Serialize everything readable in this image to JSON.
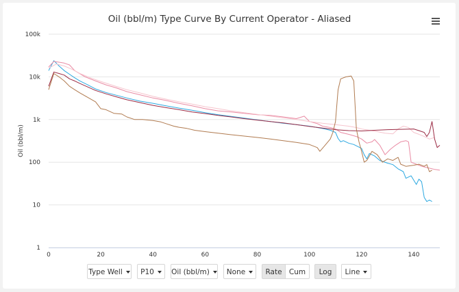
{
  "chart_title": "Oil (bbl/m) Type Curve By Current Operator - Aliased",
  "controls": {
    "type_well": "Type Well",
    "percentile": "P10",
    "metric": "Oil (bbl/m)",
    "normalize": "None",
    "rate": "Rate",
    "cum": "Cum",
    "log": "Log",
    "line": "Line"
  },
  "chart_data": {
    "type": "line",
    "title": "Oil (bbl/m) Type Curve By Current Operator - Aliased",
    "xlabel": "",
    "ylabel": "Oil (bbl/m)",
    "y_scale": "log",
    "ylim": [
      1,
      100000
    ],
    "xlim": [
      0,
      150
    ],
    "x_ticks": [
      0,
      20,
      40,
      60,
      80,
      100,
      120,
      140
    ],
    "y_ticks": [
      1,
      10,
      100,
      1000,
      10000,
      100000
    ],
    "y_tick_labels": [
      "1",
      "10",
      "100",
      "1k",
      "10k",
      "100k"
    ],
    "grid": true,
    "legend": "none",
    "series": [
      {
        "color": "#2aa7e0",
        "points": [
          [
            0,
            14000
          ],
          [
            2,
            24000
          ],
          [
            4,
            18000
          ],
          [
            6,
            14000
          ],
          [
            8,
            11500
          ],
          [
            10,
            9500
          ],
          [
            12,
            8000
          ],
          [
            15,
            6500
          ],
          [
            18,
            5200
          ],
          [
            22,
            4300
          ],
          [
            26,
            3700
          ],
          [
            30,
            3200
          ],
          [
            35,
            2700
          ],
          [
            40,
            2400
          ],
          [
            45,
            2100
          ],
          [
            50,
            1850
          ],
          [
            55,
            1650
          ],
          [
            60,
            1450
          ],
          [
            65,
            1300
          ],
          [
            70,
            1180
          ],
          [
            75,
            1080
          ],
          [
            80,
            980
          ],
          [
            85,
            900
          ],
          [
            90,
            820
          ],
          [
            95,
            760
          ],
          [
            100,
            700
          ],
          [
            103,
            650
          ],
          [
            106,
            600
          ],
          [
            108,
            560
          ],
          [
            110,
            500
          ],
          [
            111,
            360
          ],
          [
            112,
            300
          ],
          [
            113,
            320
          ],
          [
            115,
            280
          ],
          [
            117,
            260
          ],
          [
            120,
            210
          ],
          [
            121,
            150
          ],
          [
            122,
            120
          ],
          [
            123,
            160
          ],
          [
            125,
            140
          ],
          [
            127,
            110
          ],
          [
            130,
            95
          ],
          [
            132,
            88
          ],
          [
            134,
            70
          ],
          [
            136,
            60
          ],
          [
            137,
            42
          ],
          [
            139,
            48
          ],
          [
            140,
            38
          ],
          [
            141,
            30
          ],
          [
            142,
            40
          ],
          [
            143,
            35
          ],
          [
            144,
            15
          ],
          [
            145,
            12
          ],
          [
            146,
            13
          ],
          [
            147,
            12
          ]
        ]
      },
      {
        "color": "#e98aa3",
        "points": [
          [
            0,
            17000
          ],
          [
            2,
            23000
          ],
          [
            4,
            22000
          ],
          [
            6,
            21000
          ],
          [
            8,
            19000
          ],
          [
            10,
            14000
          ],
          [
            14,
            10000
          ],
          [
            18,
            8000
          ],
          [
            22,
            6500
          ],
          [
            26,
            5500
          ],
          [
            30,
            4500
          ],
          [
            35,
            3800
          ],
          [
            40,
            3200
          ],
          [
            45,
            2800
          ],
          [
            50,
            2400
          ],
          [
            55,
            2100
          ],
          [
            60,
            1800
          ],
          [
            65,
            1600
          ],
          [
            70,
            1500
          ],
          [
            75,
            1400
          ],
          [
            80,
            1300
          ],
          [
            85,
            1250
          ],
          [
            90,
            1150
          ],
          [
            95,
            1050
          ],
          [
            98,
            1200
          ],
          [
            100,
            900
          ],
          [
            103,
            800
          ],
          [
            105,
            700
          ],
          [
            108,
            650
          ],
          [
            110,
            600
          ],
          [
            112,
            500
          ],
          [
            115,
            450
          ],
          [
            118,
            400
          ],
          [
            120,
            350
          ],
          [
            122,
            280
          ],
          [
            124,
            300
          ],
          [
            125,
            340
          ],
          [
            127,
            250
          ],
          [
            129,
            150
          ],
          [
            131,
            200
          ],
          [
            133,
            250
          ],
          [
            135,
            300
          ],
          [
            137,
            320
          ],
          [
            138,
            300
          ],
          [
            139,
            100
          ],
          [
            141,
            90
          ],
          [
            143,
            80
          ],
          [
            145,
            75
          ],
          [
            148,
            68
          ],
          [
            150,
            65
          ]
        ]
      },
      {
        "color": "#f6c4cd",
        "points": [
          [
            0,
            16000
          ],
          [
            3,
            20000
          ],
          [
            6,
            18000
          ],
          [
            9,
            15000
          ],
          [
            12,
            12000
          ],
          [
            16,
            9500
          ],
          [
            20,
            7800
          ],
          [
            25,
            6200
          ],
          [
            30,
            5000
          ],
          [
            35,
            4200
          ],
          [
            40,
            3500
          ],
          [
            45,
            3000
          ],
          [
            50,
            2600
          ],
          [
            55,
            2300
          ],
          [
            60,
            2000
          ],
          [
            65,
            1800
          ],
          [
            70,
            1600
          ],
          [
            75,
            1450
          ],
          [
            80,
            1320
          ],
          [
            85,
            1200
          ],
          [
            90,
            1100
          ],
          [
            95,
            1000
          ],
          [
            100,
            900
          ],
          [
            105,
            820
          ],
          [
            110,
            760
          ],
          [
            115,
            700
          ],
          [
            118,
            650
          ],
          [
            120,
            600
          ],
          [
            123,
            560
          ],
          [
            126,
            520
          ],
          [
            129,
            480
          ],
          [
            132,
            460
          ],
          [
            134,
            600
          ],
          [
            136,
            700
          ],
          [
            138,
            650
          ],
          [
            140,
            500
          ],
          [
            142,
            450
          ],
          [
            144,
            400
          ],
          [
            146,
            350
          ],
          [
            148,
            380
          ]
        ]
      },
      {
        "color": "#9a2a43",
        "points": [
          [
            0,
            6000
          ],
          [
            2,
            13000
          ],
          [
            4,
            12000
          ],
          [
            6,
            11000
          ],
          [
            8,
            9000
          ],
          [
            10,
            8000
          ],
          [
            12,
            7000
          ],
          [
            15,
            5800
          ],
          [
            18,
            4800
          ],
          [
            22,
            4000
          ],
          [
            26,
            3400
          ],
          [
            30,
            2900
          ],
          [
            35,
            2500
          ],
          [
            40,
            2150
          ],
          [
            45,
            1900
          ],
          [
            50,
            1700
          ],
          [
            55,
            1500
          ],
          [
            60,
            1380
          ],
          [
            65,
            1250
          ],
          [
            70,
            1150
          ],
          [
            75,
            1050
          ],
          [
            80,
            970
          ],
          [
            85,
            900
          ],
          [
            90,
            830
          ],
          [
            95,
            760
          ],
          [
            100,
            690
          ],
          [
            105,
            630
          ],
          [
            110,
            580
          ],
          [
            115,
            550
          ],
          [
            120,
            540
          ],
          [
            125,
            560
          ],
          [
            130,
            580
          ],
          [
            135,
            590
          ],
          [
            140,
            600
          ],
          [
            142,
            550
          ],
          [
            144,
            500
          ],
          [
            145,
            400
          ],
          [
            146,
            500
          ],
          [
            147,
            900
          ],
          [
            148,
            350
          ],
          [
            149,
            220
          ],
          [
            150,
            250
          ]
        ]
      },
      {
        "color": "#b07a4f",
        "points": [
          [
            0,
            5000
          ],
          [
            2,
            12000
          ],
          [
            4,
            10000
          ],
          [
            6,
            8000
          ],
          [
            8,
            6000
          ],
          [
            10,
            5000
          ],
          [
            12,
            4200
          ],
          [
            15,
            3300
          ],
          [
            18,
            2600
          ],
          [
            20,
            1800
          ],
          [
            22,
            1700
          ],
          [
            25,
            1400
          ],
          [
            28,
            1350
          ],
          [
            30,
            1150
          ],
          [
            33,
            1000
          ],
          [
            36,
            1000
          ],
          [
            40,
            950
          ],
          [
            43,
            880
          ],
          [
            45,
            800
          ],
          [
            48,
            700
          ],
          [
            50,
            660
          ],
          [
            53,
            620
          ],
          [
            56,
            560
          ],
          [
            60,
            520
          ],
          [
            65,
            480
          ],
          [
            70,
            440
          ],
          [
            75,
            410
          ],
          [
            80,
            380
          ],
          [
            85,
            350
          ],
          [
            90,
            320
          ],
          [
            95,
            290
          ],
          [
            100,
            260
          ],
          [
            103,
            220
          ],
          [
            104,
            180
          ],
          [
            106,
            250
          ],
          [
            108,
            350
          ],
          [
            109,
            500
          ],
          [
            110,
            900
          ],
          [
            111,
            5000
          ],
          [
            112,
            9000
          ],
          [
            114,
            10000
          ],
          [
            116,
            10500
          ],
          [
            117,
            8000
          ],
          [
            118,
            600
          ],
          [
            119,
            300
          ],
          [
            120,
            180
          ],
          [
            121,
            100
          ],
          [
            122,
            110
          ],
          [
            123,
            140
          ],
          [
            124,
            180
          ],
          [
            126,
            150
          ],
          [
            128,
            100
          ],
          [
            130,
            120
          ],
          [
            132,
            110
          ],
          [
            134,
            130
          ],
          [
            135,
            90
          ],
          [
            137,
            80
          ],
          [
            140,
            85
          ],
          [
            142,
            90
          ],
          [
            144,
            80
          ],
          [
            145,
            88
          ],
          [
            146,
            60
          ],
          [
            147,
            65
          ]
        ]
      }
    ]
  }
}
